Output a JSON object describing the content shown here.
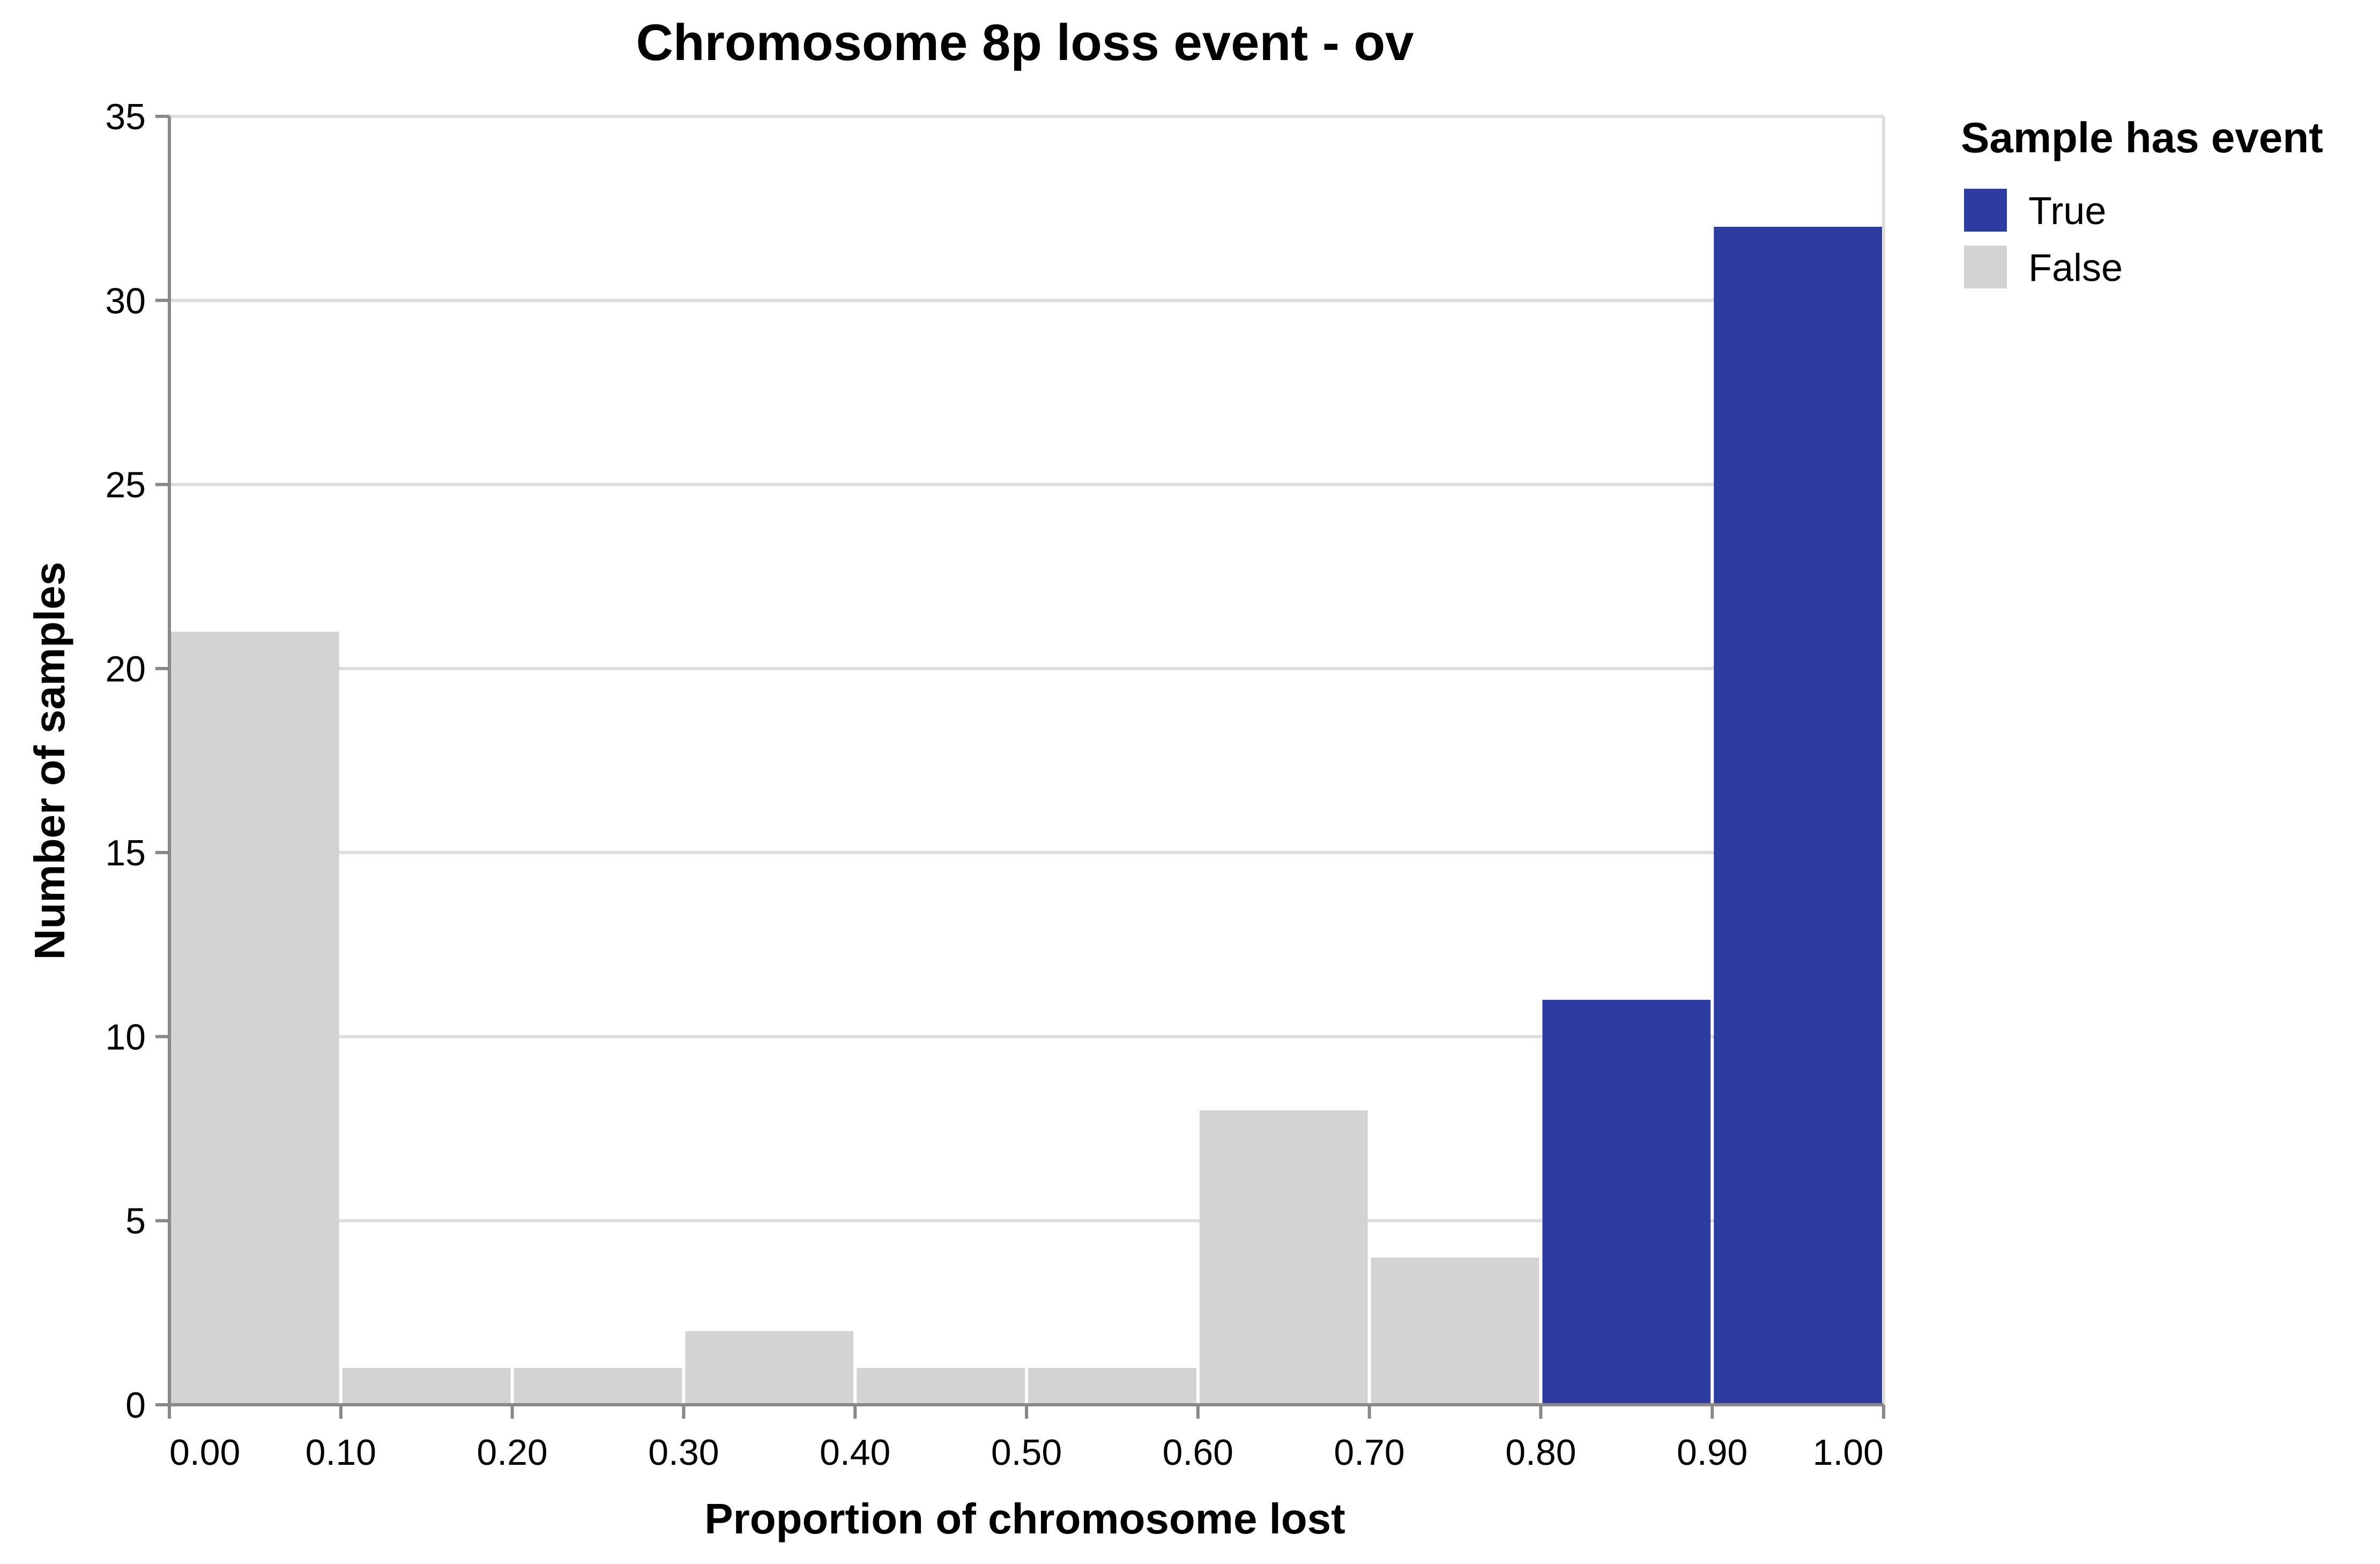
{
  "chart_data": {
    "type": "bar",
    "title": "Chromosome 8p loss event - ov",
    "xlabel": "Proportion of chromosome lost",
    "ylabel": "Number of samples",
    "xlim": [
      0,
      1
    ],
    "ylim": [
      0,
      35
    ],
    "x_ticks": [
      "0.00",
      "0.10",
      "0.20",
      "0.30",
      "0.40",
      "0.50",
      "0.60",
      "0.70",
      "0.80",
      "0.90",
      "1.00"
    ],
    "y_ticks": [
      "0",
      "5",
      "10",
      "15",
      "20",
      "25",
      "30",
      "35"
    ],
    "grid": true,
    "legend": {
      "title": "Sample has event",
      "placement": "right",
      "items": [
        {
          "label": "True",
          "color": "#2e3ba1"
        },
        {
          "label": "False",
          "color": "#d3d3d3"
        }
      ]
    },
    "bins": [
      {
        "x0": 0.0,
        "x1": 0.1,
        "count": 21,
        "has_event": "False"
      },
      {
        "x0": 0.1,
        "x1": 0.2,
        "count": 1,
        "has_event": "False"
      },
      {
        "x0": 0.2,
        "x1": 0.3,
        "count": 1,
        "has_event": "False"
      },
      {
        "x0": 0.3,
        "x1": 0.4,
        "count": 2,
        "has_event": "False"
      },
      {
        "x0": 0.4,
        "x1": 0.5,
        "count": 1,
        "has_event": "False"
      },
      {
        "x0": 0.5,
        "x1": 0.6,
        "count": 1,
        "has_event": "False"
      },
      {
        "x0": 0.6,
        "x1": 0.7,
        "count": 8,
        "has_event": "False"
      },
      {
        "x0": 0.7,
        "x1": 0.8,
        "count": 4,
        "has_event": "False"
      },
      {
        "x0": 0.8,
        "x1": 0.9,
        "count": 11,
        "has_event": "True"
      },
      {
        "x0": 0.9,
        "x1": 1.0,
        "count": 32,
        "has_event": "True"
      }
    ]
  }
}
